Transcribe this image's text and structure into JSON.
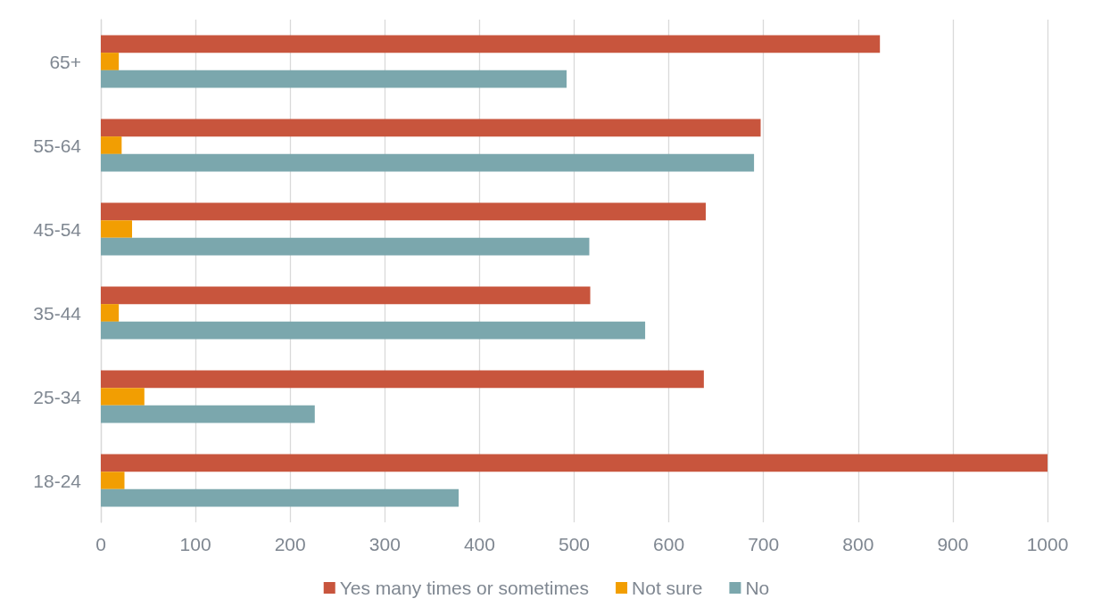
{
  "chart_data": {
    "type": "bar",
    "orientation": "horizontal",
    "categories": [
      "65+",
      "55-64",
      "45-54",
      "35-44",
      "25-34",
      "18-24"
    ],
    "series": [
      {
        "name": "Yes many times or sometimes",
        "color": "#c8553d",
        "values": [
          823,
          697,
          639,
          517,
          637,
          1000
        ]
      },
      {
        "name": "Not sure",
        "color": "#f29e02",
        "values": [
          19,
          22,
          33,
          19,
          46,
          25
        ]
      },
      {
        "name": "No",
        "color": "#7ba7ad",
        "values": [
          492,
          690,
          516,
          575,
          226,
          378
        ]
      }
    ],
    "xlim": [
      0,
      1000
    ],
    "xticks": [
      0,
      100,
      200,
      300,
      400,
      500,
      600,
      700,
      800,
      900,
      1000
    ],
    "grid": "x",
    "legend": "bottom"
  }
}
